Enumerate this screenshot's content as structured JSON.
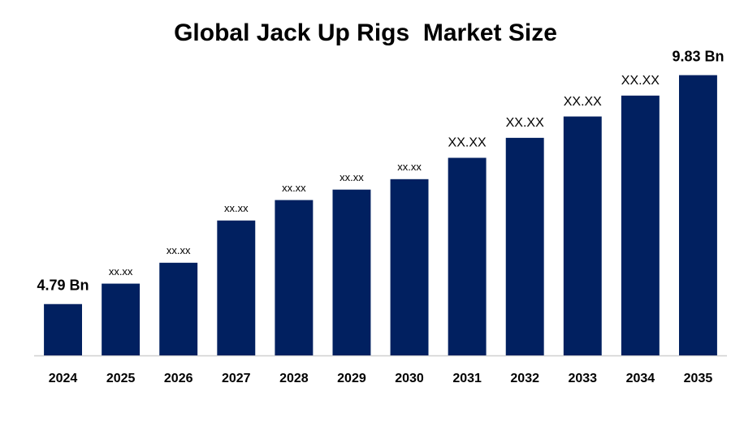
{
  "chart_data": {
    "type": "bar",
    "title": "Global Jack Up Rigs  Market Size",
    "categories": [
      "2024",
      "2025",
      "2026",
      "2027",
      "2028",
      "2029",
      "2030",
      "2031",
      "2032",
      "2033",
      "2034",
      "2035"
    ],
    "values": [
      4.79,
      5.24,
      5.7,
      6.63,
      7.08,
      7.31,
      7.54,
      8.01,
      8.45,
      8.92,
      9.38,
      9.83
    ],
    "value_labels": [
      "4.79 Bn",
      "xx.xx",
      "xx.xx",
      "xx.xx",
      "xx.xx",
      "xx.xx",
      "xx.xx",
      "XX.XX",
      "XX.XX",
      "XX.XX",
      "XX.XX",
      "9.83 Bn"
    ],
    "color": "#012060",
    "ylim": [
      3.66,
      10.77
    ]
  }
}
